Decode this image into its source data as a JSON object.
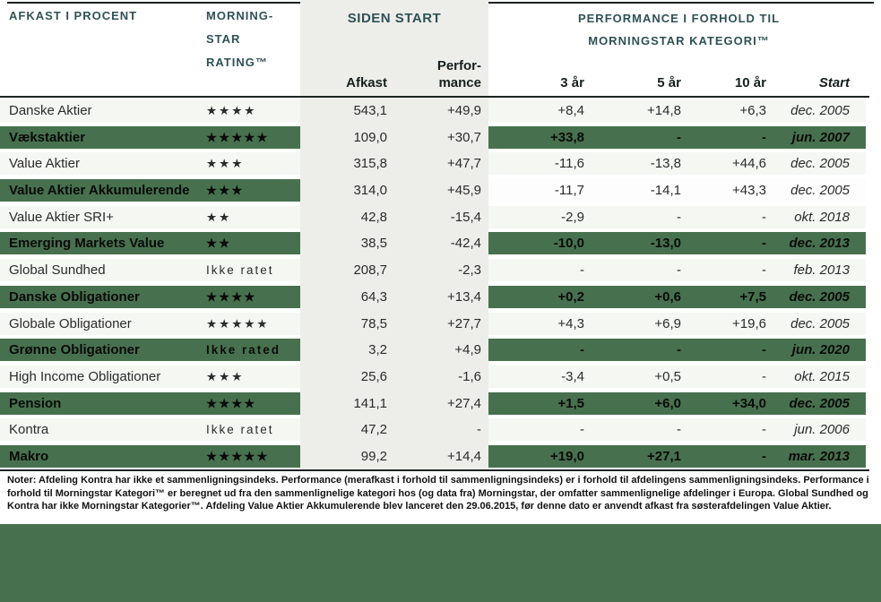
{
  "colors": {
    "highlight_green": "#47714e",
    "header_teal": "#2f5156",
    "gray_column_band": "#edeeea",
    "light_row": "#f5f7f3"
  },
  "header": {
    "left_title": "AFKAST I PROCENT",
    "rating_line1": "MORNING-",
    "rating_line2": "STAR",
    "rating_line3": "RATING™",
    "siden_start_title": "SIDEN START",
    "perf_title_line1": "PERFORMANCE I FORHOLD TIL",
    "perf_title_line2": "MORNINGSTAR KATEGORI™",
    "columns": {
      "afkast": "Afkast",
      "perf_line1": "Perfor-",
      "perf_line2": "mance",
      "y3": "3 år",
      "y5": "5 år",
      "y10": "10 år",
      "start": "Start"
    }
  },
  "rows": [
    {
      "name": "Danske Aktier",
      "rating": "★★★★",
      "afkast": "543,1",
      "performance": "+49,9",
      "y3": "+8,4",
      "y5": "+14,8",
      "y10": "+6,3",
      "start": "dec. 2005",
      "left_highlight": false,
      "right_style": "light"
    },
    {
      "name": "Vækstaktier",
      "rating": "★★★★★",
      "afkast": "109,0",
      "performance": "+30,7",
      "y3": "+33,8",
      "y5": "-",
      "y10": "-",
      "start": "jun. 2007",
      "left_highlight": true,
      "right_style": "green"
    },
    {
      "name": "Value Aktier",
      "rating": "★★★",
      "afkast": "315,8",
      "performance": "+47,7",
      "y3": "-11,6",
      "y5": "-13,8",
      "y10": "+44,6",
      "start": "dec. 2005",
      "left_highlight": false,
      "right_style": "light"
    },
    {
      "name": "Value Aktier Akkumulerende",
      "rating": "★★★",
      "afkast": "314,0",
      "performance": "+45,9",
      "y3": "-11,7",
      "y5": "-14,1",
      "y10": "+43,3",
      "start": "dec. 2005",
      "left_highlight": true,
      "right_style": "white"
    },
    {
      "name": "Value Aktier SRI+",
      "rating": "★★",
      "afkast": "42,8",
      "performance": "-15,4",
      "y3": "-2,9",
      "y5": "-",
      "y10": "-",
      "start": "okt. 2018",
      "left_highlight": false,
      "right_style": "light"
    },
    {
      "name": "Emerging Markets Value",
      "rating": "★★",
      "afkast": "38,5",
      "performance": "-42,4",
      "y3": "-10,0",
      "y5": "-13,0",
      "y10": "-",
      "start": "dec. 2013",
      "left_highlight": true,
      "right_style": "green"
    },
    {
      "name": "Global Sundhed",
      "rating": "Ikke ratet",
      "afkast": "208,7",
      "performance": "-2,3",
      "y3": "-",
      "y5": "-",
      "y10": "-",
      "start": "feb. 2013",
      "left_highlight": false,
      "right_style": "light"
    },
    {
      "name": "Danske Obligationer",
      "rating": "★★★★",
      "afkast": "64,3",
      "performance": "+13,4",
      "y3": "+0,2",
      "y5": "+0,6",
      "y10": "+7,5",
      "start": "dec. 2005",
      "left_highlight": true,
      "right_style": "green"
    },
    {
      "name": "Globale Obligationer",
      "rating": "★★★★★",
      "afkast": "78,5",
      "performance": "+27,7",
      "y3": "+4,3",
      "y5": "+6,9",
      "y10": "+19,6",
      "start": "dec. 2005",
      "left_highlight": false,
      "right_style": "light"
    },
    {
      "name": "Grønne Obligationer",
      "rating": "Ikke rated",
      "afkast": "3,2",
      "performance": "+4,9",
      "y3": "-",
      "y5": "-",
      "y10": "-",
      "start": "jun. 2020",
      "left_highlight": true,
      "right_style": "green"
    },
    {
      "name": "High Income Obligationer",
      "rating": "★★★",
      "afkast": "25,6",
      "performance": "-1,6",
      "y3": "-3,4",
      "y5": "+0,5",
      "y10": "-",
      "start": "okt. 2015",
      "left_highlight": false,
      "right_style": "light"
    },
    {
      "name": "Pension",
      "rating": "★★★★",
      "afkast": "141,1",
      "performance": "+27,4",
      "y3": "+1,5",
      "y5": "+6,0",
      "y10": "+34,0",
      "start": "dec. 2005",
      "left_highlight": true,
      "right_style": "green"
    },
    {
      "name": "Kontra",
      "rating": "Ikke ratet",
      "afkast": "47,2",
      "performance": "-",
      "y3": "-",
      "y5": "-",
      "y10": "-",
      "start": "jun. 2006",
      "left_highlight": false,
      "right_style": "light"
    },
    {
      "name": "Makro",
      "rating": "★★★★★",
      "afkast": "99,2",
      "performance": "+14,4",
      "y3": "+19,0",
      "y5": "+27,1",
      "y10": "-",
      "start": "mar. 2013",
      "left_highlight": true,
      "right_style": "green"
    }
  ],
  "notes": {
    "text": "Noter: Afdeling Kontra har ikke et sammenligningsindeks. Performance (merafkast i forhold til sammenligningsindeks) er i forhold til afdelingens sammenligningsindeks. Performance i forhold til Morningstar Kategori™ er beregnet ud fra den sammenlignelige kategori hos (og data fra) Morningstar, der omfatter sammenlignelige afdelinger i Europa. Global Sundhed og Kontra har ikke Morningstar Kategorier™. Afdeling Value Aktier Akkumulerende blev lanceret den 29.06.2015, før denne dato er anvendt afkast fra søsterafdelingen Value Aktier."
  }
}
